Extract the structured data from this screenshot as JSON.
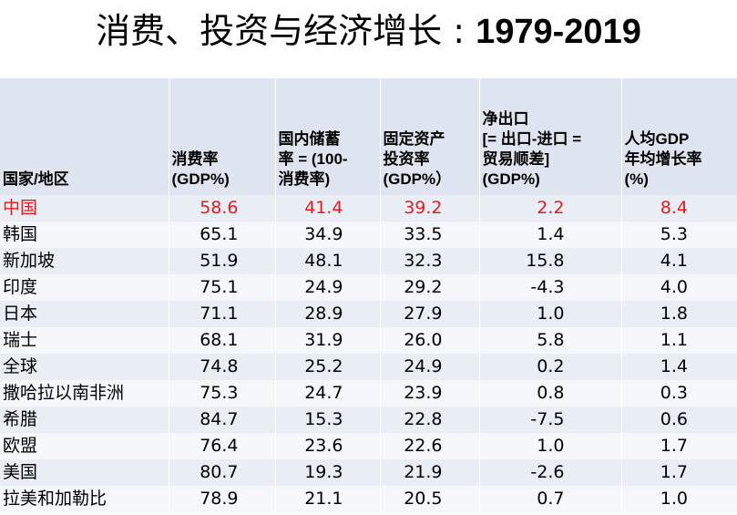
{
  "title": {
    "main": "消费、投资与经济增长 : ",
    "years": "1979-2019"
  },
  "table": {
    "headers": [
      "国家/地区",
      "消费率\n(GDP%)",
      "国内储蓄\n率 = (100-\n消费率)",
      "固定资产\n投资率\n(GDP%）",
      "净出口\n[= 出口-进口 =\n贸易顺差]\n(GDP%)",
      "人均GDP\n年均增长率\n(%)"
    ],
    "rows": [
      {
        "region": "中国",
        "consumption": "58.6",
        "savings": "41.4",
        "investment": "39.2",
        "net_exports": "2.2",
        "growth": "8.4",
        "highlight": true
      },
      {
        "region": "韩国",
        "consumption": "65.1",
        "savings": "34.9",
        "investment": "33.5",
        "net_exports": "1.4",
        "growth": "5.3"
      },
      {
        "region": "新加坡",
        "consumption": "51.9",
        "savings": "48.1",
        "investment": "32.3",
        "net_exports": "15.8",
        "growth": "4.1"
      },
      {
        "region": "印度",
        "consumption": "75.1",
        "savings": "24.9",
        "investment": "29.2",
        "net_exports": "-4.3",
        "growth": "4.0"
      },
      {
        "region": "日本",
        "consumption": "71.1",
        "savings": "28.9",
        "investment": "27.9",
        "net_exports": "1.0",
        "growth": "1.8"
      },
      {
        "region": "瑞士",
        "consumption": "68.1",
        "savings": "31.9",
        "investment": "26.0",
        "net_exports": "5.8",
        "growth": "1.1"
      },
      {
        "region": "全球",
        "consumption": "74.8",
        "savings": "25.2",
        "investment": "24.9",
        "net_exports": "0.2",
        "growth": "1.4"
      },
      {
        "region": "撒哈拉以南非洲",
        "consumption": "75.3",
        "savings": "24.7",
        "investment": "23.9",
        "net_exports": "0.8",
        "growth": "0.3"
      },
      {
        "region": "希腊",
        "consumption": "84.7",
        "savings": "15.3",
        "investment": "22.8",
        "net_exports": "-7.5",
        "growth": "0.6"
      },
      {
        "region": "欧盟",
        "consumption": "76.4",
        "savings": "23.6",
        "investment": "22.6",
        "net_exports": "1.0",
        "growth": "1.7"
      },
      {
        "region": "美国",
        "consumption": "80.7",
        "savings": "19.3",
        "investment": "21.9",
        "net_exports": "-2.6",
        "growth": "1.7"
      },
      {
        "region": "拉美和加勒比",
        "consumption": "78.9",
        "savings": "21.1",
        "investment": "20.5",
        "net_exports": "0.7",
        "growth": "1.0"
      }
    ]
  },
  "colors": {
    "highlight": "#e8191f",
    "header_bg": "#dee5f1",
    "row_odd": "#e9edf4",
    "row_even": "#f5f7fb"
  }
}
